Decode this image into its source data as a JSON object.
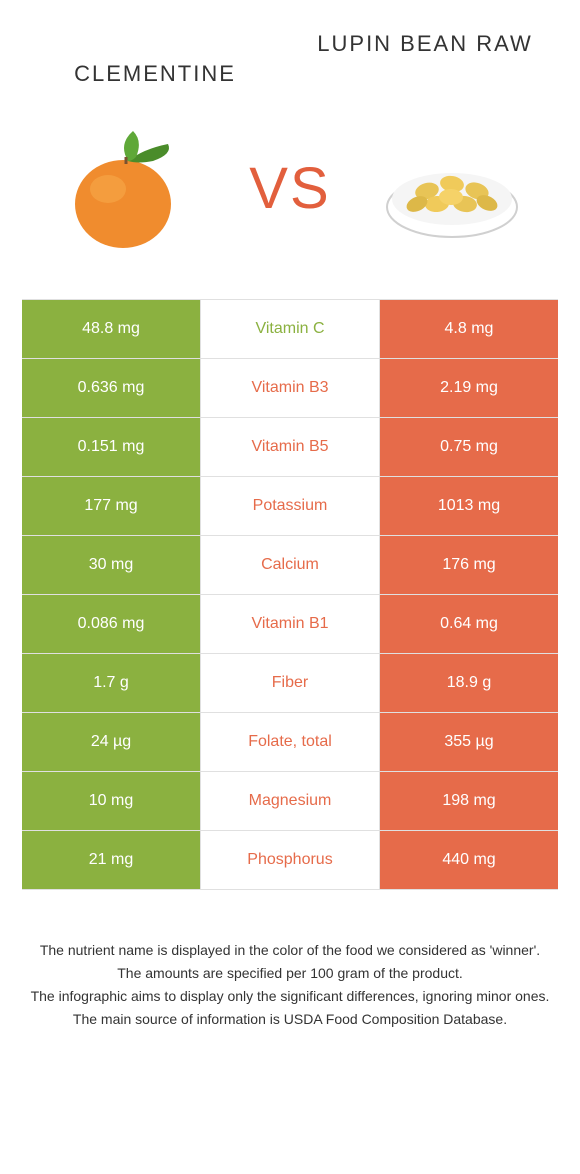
{
  "colors": {
    "green": "#8bb140",
    "orange": "#e66b4a",
    "vs_color": "#e25f3d",
    "text_dark": "#333333",
    "white": "#ffffff"
  },
  "header": {
    "left_title": "Clementine",
    "right_title": "Lupin Bean Raw",
    "vs_label": "VS"
  },
  "rows": [
    {
      "left": "48.8 mg",
      "label": "Vitamin C",
      "right": "4.8 mg",
      "winner": "left"
    },
    {
      "left": "0.636 mg",
      "label": "Vitamin B3",
      "right": "2.19 mg",
      "winner": "right"
    },
    {
      "left": "0.151 mg",
      "label": "Vitamin B5",
      "right": "0.75 mg",
      "winner": "right"
    },
    {
      "left": "177 mg",
      "label": "Potassium",
      "right": "1013 mg",
      "winner": "right"
    },
    {
      "left": "30 mg",
      "label": "Calcium",
      "right": "176 mg",
      "winner": "right"
    },
    {
      "left": "0.086 mg",
      "label": "Vitamin B1",
      "right": "0.64 mg",
      "winner": "right"
    },
    {
      "left": "1.7 g",
      "label": "Fiber",
      "right": "18.9 g",
      "winner": "right"
    },
    {
      "left": "24 µg",
      "label": "Folate, total",
      "right": "355 µg",
      "winner": "right"
    },
    {
      "left": "10 mg",
      "label": "Magnesium",
      "right": "198 mg",
      "winner": "right"
    },
    {
      "left": "21 mg",
      "label": "Phosphorus",
      "right": "440 mg",
      "winner": "right"
    }
  ],
  "footer": {
    "line1": "The nutrient name is displayed in the color of the food we considered as 'winner'.",
    "line2": "The amounts are specified per 100 gram of the product.",
    "line3": "The infographic aims to display only the significant differences, ignoring minor ones.",
    "line4": "The main source of information is USDA Food Composition Database."
  }
}
